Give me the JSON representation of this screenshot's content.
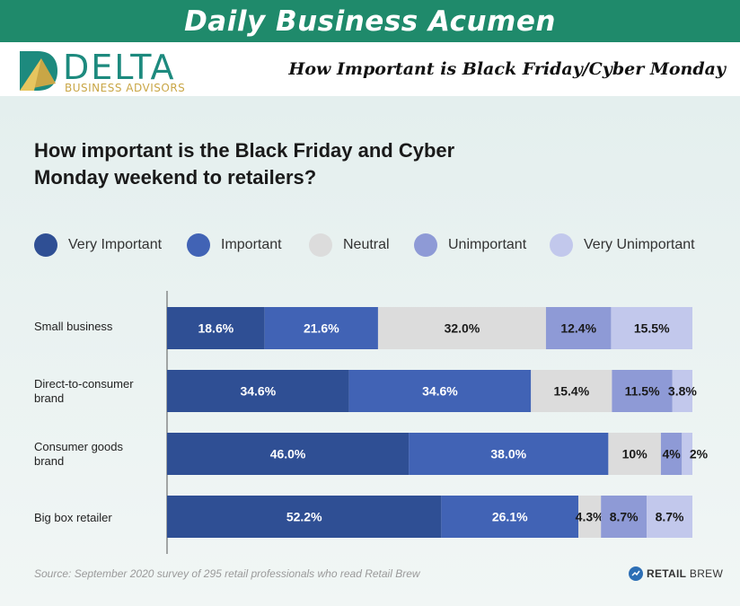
{
  "banner": {
    "title": "Daily Business Acumen"
  },
  "logo": {
    "name": "DELTA",
    "tagline": "BUSINESS ADVISORS",
    "colors": {
      "teal": "#1d8a7e",
      "gold": "#c9a646"
    }
  },
  "header": {
    "subtitle": "How Important is Black Friday/Cyber Monday"
  },
  "chart_data": {
    "type": "bar",
    "orientation": "horizontal",
    "stacked": true,
    "title": "How important is the Black Friday and Cyber Monday weekend to retailers?",
    "categories": [
      "Small business",
      "Direct-to-consumer brand",
      "Consumer goods brand",
      "Big box retailer"
    ],
    "series": [
      {
        "name": "Very Important",
        "color": "#2f4f94",
        "values": [
          18.6,
          34.6,
          46.0,
          52.2
        ],
        "labels": [
          "18.6%",
          "34.6%",
          "46.0%",
          "52.2%"
        ]
      },
      {
        "name": "Important",
        "color": "#4163b5",
        "values": [
          21.6,
          34.6,
          38.0,
          26.1
        ],
        "labels": [
          "21.6%",
          "34.6%",
          "38.0%",
          "26.1%"
        ]
      },
      {
        "name": "Neutral",
        "color": "#dcdcdc",
        "values": [
          32.0,
          15.4,
          10,
          4.3
        ],
        "labels": [
          "32.0%",
          "15.4%",
          "10%",
          "4.3%"
        ]
      },
      {
        "name": "Unimportant",
        "color": "#8e9ad6",
        "values": [
          12.4,
          11.5,
          4,
          8.7
        ],
        "labels": [
          "12.4%",
          "11.5%",
          "4%",
          "8.7%"
        ]
      },
      {
        "name": "Very Unimportant",
        "color": "#c2c8ec",
        "values": [
          15.5,
          3.8,
          2,
          8.7
        ],
        "labels": [
          "15.5%",
          "3.8%",
          "2%",
          "8.7%"
        ]
      }
    ],
    "legend_position": "top"
  },
  "source": "Source: September 2020 survey of 295 retail professionals who read Retail Brew",
  "brand": {
    "prefix": "Retail",
    "suffix": "Brew"
  }
}
